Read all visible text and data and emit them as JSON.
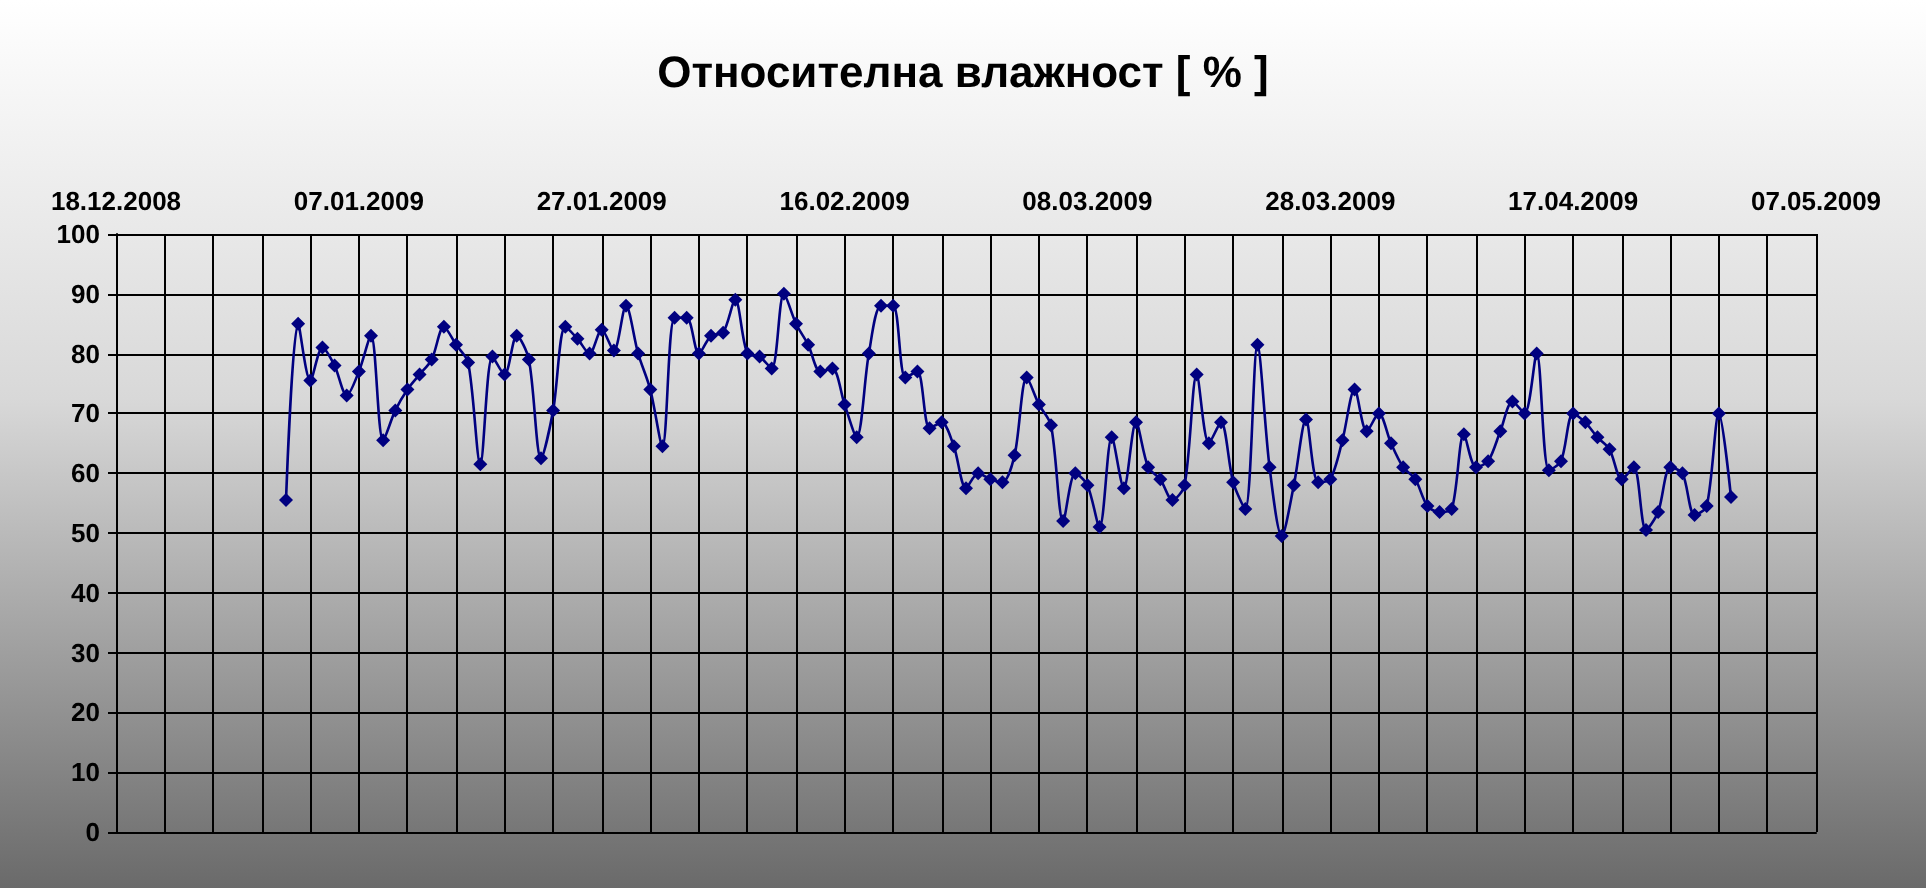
{
  "chart_data": {
    "type": "line",
    "title": "Относителна влажност [ % ]",
    "x": [
      "2009-01-01",
      "2009-01-02",
      "2009-01-03",
      "2009-01-04",
      "2009-01-05",
      "2009-01-06",
      "2009-01-07",
      "2009-01-08",
      "2009-01-09",
      "2009-01-10",
      "2009-01-11",
      "2009-01-12",
      "2009-01-13",
      "2009-01-14",
      "2009-01-15",
      "2009-01-16",
      "2009-01-17",
      "2009-01-18",
      "2009-01-19",
      "2009-01-20",
      "2009-01-21",
      "2009-01-22",
      "2009-01-23",
      "2009-01-24",
      "2009-01-25",
      "2009-01-26",
      "2009-01-27",
      "2009-01-28",
      "2009-01-29",
      "2009-01-30",
      "2009-01-31",
      "2009-02-01",
      "2009-02-02",
      "2009-02-03",
      "2009-02-04",
      "2009-02-05",
      "2009-02-06",
      "2009-02-07",
      "2009-02-08",
      "2009-02-09",
      "2009-02-10",
      "2009-02-11",
      "2009-02-12",
      "2009-02-13",
      "2009-02-14",
      "2009-02-15",
      "2009-02-16",
      "2009-02-17",
      "2009-02-18",
      "2009-02-19",
      "2009-02-20",
      "2009-02-21",
      "2009-02-22",
      "2009-02-23",
      "2009-02-24",
      "2009-02-25",
      "2009-02-26",
      "2009-02-27",
      "2009-02-28",
      "2009-03-01",
      "2009-03-02",
      "2009-03-03",
      "2009-03-04",
      "2009-03-05",
      "2009-03-06",
      "2009-03-07",
      "2009-03-08",
      "2009-03-09",
      "2009-03-10",
      "2009-03-11",
      "2009-03-12",
      "2009-03-13",
      "2009-03-14",
      "2009-03-15",
      "2009-03-16",
      "2009-03-17",
      "2009-03-18",
      "2009-03-19",
      "2009-03-20",
      "2009-03-21",
      "2009-03-22",
      "2009-03-23",
      "2009-03-24",
      "2009-03-25",
      "2009-03-26",
      "2009-03-27",
      "2009-03-28",
      "2009-03-29",
      "2009-03-30",
      "2009-03-31",
      "2009-04-01",
      "2009-04-02",
      "2009-04-03",
      "2009-04-04",
      "2009-04-05",
      "2009-04-06",
      "2009-04-07",
      "2009-04-08",
      "2009-04-09",
      "2009-04-10",
      "2009-04-11",
      "2009-04-12",
      "2009-04-13",
      "2009-04-14",
      "2009-04-15",
      "2009-04-16",
      "2009-04-17",
      "2009-04-18",
      "2009-04-19",
      "2009-04-20",
      "2009-04-21",
      "2009-04-22",
      "2009-04-23",
      "2009-04-24",
      "2009-04-25",
      "2009-04-26",
      "2009-04-27",
      "2009-04-28",
      "2009-04-29",
      "2009-04-30"
    ],
    "series": [
      {
        "color": "#000080",
        "values": [
          55.5,
          85,
          75.5,
          81,
          78,
          73,
          77,
          83,
          65.5,
          70.5,
          74,
          76.5,
          79,
          84.5,
          81.5,
          78.5,
          61.5,
          79.5,
          76.5,
          83,
          79,
          62.5,
          70.5,
          84.5,
          82.5,
          80,
          84,
          80.5,
          88,
          80,
          74,
          64.5,
          86,
          86,
          80,
          83,
          83.5,
          89,
          80,
          79.5,
          77.5,
          90,
          85,
          81.5,
          77,
          77.5,
          71.5,
          66,
          80,
          88,
          88,
          76,
          77,
          67.5,
          68.5,
          64.5,
          57.5,
          60,
          59,
          58.5,
          63,
          76,
          71.5,
          68,
          52,
          60,
          58,
          51,
          66,
          57.5,
          68.5,
          61,
          59,
          55.5,
          58,
          76.5,
          65,
          68.5,
          58.5,
          54,
          81.5,
          61,
          49.5,
          58,
          69,
          58.5,
          59,
          65.5,
          74,
          67,
          70,
          65,
          61,
          59,
          54.5,
          53.5,
          54,
          66.5,
          61,
          62,
          67,
          72,
          70,
          80,
          60.5,
          62,
          70,
          68.5,
          66,
          64,
          59,
          61,
          50.5,
          53.5,
          61,
          60,
          53,
          54.5,
          70,
          56
        ]
      }
    ],
    "xlim": [
      "2008-12-18",
      "2009-05-07"
    ],
    "xticks": [
      {
        "value": "2008-12-18",
        "label": "18.12.2008"
      },
      {
        "value": "2008-12-22",
        "label": null
      },
      {
        "value": "2008-12-26",
        "label": null
      },
      {
        "value": "2008-12-30",
        "label": null
      },
      {
        "value": "2009-01-03",
        "label": null
      },
      {
        "value": "2009-01-07",
        "label": "07.01.2009"
      },
      {
        "value": "2009-01-11",
        "label": null
      },
      {
        "value": "2009-01-15",
        "label": null
      },
      {
        "value": "2009-01-19",
        "label": null
      },
      {
        "value": "2009-01-23",
        "label": null
      },
      {
        "value": "2009-01-27",
        "label": "27.01.2009"
      },
      {
        "value": "2009-01-31",
        "label": null
      },
      {
        "value": "2009-02-04",
        "label": null
      },
      {
        "value": "2009-02-08",
        "label": null
      },
      {
        "value": "2009-02-12",
        "label": null
      },
      {
        "value": "2009-02-16",
        "label": "16.02.2009"
      },
      {
        "value": "2009-02-20",
        "label": null
      },
      {
        "value": "2009-02-24",
        "label": null
      },
      {
        "value": "2009-02-28",
        "label": null
      },
      {
        "value": "2009-03-04",
        "label": null
      },
      {
        "value": "2009-03-08",
        "label": "08.03.2009"
      },
      {
        "value": "2009-03-12",
        "label": null
      },
      {
        "value": "2009-03-16",
        "label": null
      },
      {
        "value": "2009-03-20",
        "label": null
      },
      {
        "value": "2009-03-24",
        "label": null
      },
      {
        "value": "2009-03-28",
        "label": "28.03.2009"
      },
      {
        "value": "2009-04-01",
        "label": null
      },
      {
        "value": "2009-04-05",
        "label": null
      },
      {
        "value": "2009-04-09",
        "label": null
      },
      {
        "value": "2009-04-13",
        "label": null
      },
      {
        "value": "2009-04-17",
        "label": "17.04.2009"
      },
      {
        "value": "2009-04-21",
        "label": null
      },
      {
        "value": "2009-04-25",
        "label": null
      },
      {
        "value": "2009-04-29",
        "label": null
      },
      {
        "value": "2009-05-03",
        "label": null
      },
      {
        "value": "2009-05-07",
        "label": "07.05.2009"
      }
    ],
    "ylim": [
      0,
      100
    ],
    "yticks": [
      0,
      10,
      20,
      30,
      40,
      50,
      60,
      70,
      80,
      90,
      100
    ],
    "grid": true,
    "marker": "diamond",
    "line_style": "solid"
  }
}
